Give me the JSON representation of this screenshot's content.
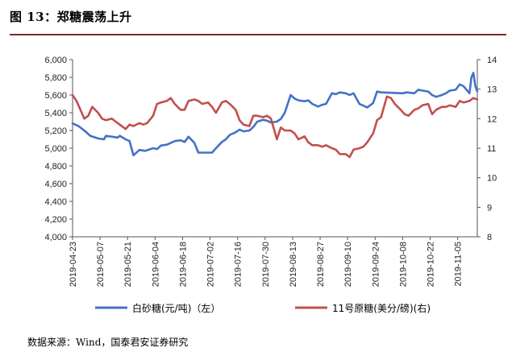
{
  "title": "图 13：郑糖震荡上升",
  "source": "数据来源：Wind，国泰君安证券研究",
  "chart_data": {
    "type": "line",
    "y_left": {
      "min": 4000,
      "max": 6000,
      "step": 200,
      "ticks": [
        "4,000",
        "4,200",
        "4,400",
        "4,600",
        "4,800",
        "5,000",
        "5,200",
        "5,400",
        "5,600",
        "5,800",
        "6,000"
      ]
    },
    "y_right": {
      "min": 8,
      "max": 14,
      "step": 1,
      "ticks": [
        "8",
        "9",
        "10",
        "11",
        "12",
        "13",
        "14"
      ]
    },
    "x_ticks": [
      "2019-04-23",
      "2019-05-07",
      "2019-05-21",
      "2019-06-04",
      "2019-06-18",
      "2019-07-02",
      "2019-07-16",
      "2019-07-30",
      "2019-08-13",
      "2019-08-27",
      "2019-09-10",
      "2019-09-24",
      "2019-10-08",
      "2019-10-22",
      "2019-11-05"
    ],
    "x_range": [
      "2019-04-23",
      "2019-11-15"
    ],
    "grid": false,
    "legend_position": "bottom",
    "series": [
      {
        "name": "白砂糖(元/吨)（左）",
        "axis": "left",
        "color": "#4472c4",
        "points": [
          [
            "2019-04-23",
            5280
          ],
          [
            "2019-04-26",
            5250
          ],
          [
            "2019-04-29",
            5200
          ],
          [
            "2019-05-02",
            5140
          ],
          [
            "2019-05-06",
            5110
          ],
          [
            "2019-05-09",
            5100
          ],
          [
            "2019-05-10",
            5140
          ],
          [
            "2019-05-13",
            5130
          ],
          [
            "2019-05-16",
            5120
          ],
          [
            "2019-05-17",
            5140
          ],
          [
            "2019-05-20",
            5100
          ],
          [
            "2019-05-22",
            5080
          ],
          [
            "2019-05-24",
            4920
          ],
          [
            "2019-05-27",
            4980
          ],
          [
            "2019-05-30",
            4970
          ],
          [
            "2019-06-03",
            5000
          ],
          [
            "2019-06-05",
            4990
          ],
          [
            "2019-06-07",
            5030
          ],
          [
            "2019-06-10",
            5040
          ],
          [
            "2019-06-12",
            5060
          ],
          [
            "2019-06-14",
            5080
          ],
          [
            "2019-06-17",
            5090
          ],
          [
            "2019-06-19",
            5070
          ],
          [
            "2019-06-21",
            5130
          ],
          [
            "2019-06-24",
            5060
          ],
          [
            "2019-06-26",
            4950
          ],
          [
            "2019-06-28",
            4950
          ],
          [
            "2019-07-01",
            4950
          ],
          [
            "2019-07-03",
            4950
          ],
          [
            "2019-07-05",
            5000
          ],
          [
            "2019-07-08",
            5070
          ],
          [
            "2019-07-10",
            5100
          ],
          [
            "2019-07-12",
            5150
          ],
          [
            "2019-07-15",
            5180
          ],
          [
            "2019-07-17",
            5210
          ],
          [
            "2019-07-19",
            5190
          ],
          [
            "2019-07-22",
            5200
          ],
          [
            "2019-07-24",
            5240
          ],
          [
            "2019-07-26",
            5300
          ],
          [
            "2019-07-29",
            5320
          ],
          [
            "2019-07-31",
            5310
          ],
          [
            "2019-08-02",
            5290
          ],
          [
            "2019-08-05",
            5300
          ],
          [
            "2019-08-07",
            5330
          ],
          [
            "2019-08-09",
            5400
          ],
          [
            "2019-08-12",
            5600
          ],
          [
            "2019-08-14",
            5560
          ],
          [
            "2019-08-16",
            5540
          ],
          [
            "2019-08-19",
            5530
          ],
          [
            "2019-08-21",
            5540
          ],
          [
            "2019-08-23",
            5500
          ],
          [
            "2019-08-26",
            5470
          ],
          [
            "2019-08-28",
            5490
          ],
          [
            "2019-08-30",
            5500
          ],
          [
            "2019-09-02",
            5620
          ],
          [
            "2019-09-04",
            5610
          ],
          [
            "2019-09-06",
            5630
          ],
          [
            "2019-09-09",
            5620
          ],
          [
            "2019-09-11",
            5600
          ],
          [
            "2019-09-13",
            5620
          ],
          [
            "2019-09-16",
            5500
          ],
          [
            "2019-09-18",
            5480
          ],
          [
            "2019-09-20",
            5460
          ],
          [
            "2019-09-23",
            5510
          ],
          [
            "2019-09-25",
            5640
          ],
          [
            "2019-09-27",
            5630
          ],
          [
            "2019-10-08",
            5620
          ],
          [
            "2019-10-10",
            5630
          ],
          [
            "2019-10-14",
            5620
          ],
          [
            "2019-10-16",
            5660
          ],
          [
            "2019-10-18",
            5650
          ],
          [
            "2019-10-21",
            5640
          ],
          [
            "2019-10-23",
            5600
          ],
          [
            "2019-10-25",
            5580
          ],
          [
            "2019-10-28",
            5600
          ],
          [
            "2019-10-30",
            5620
          ],
          [
            "2019-11-01",
            5650
          ],
          [
            "2019-11-04",
            5660
          ],
          [
            "2019-11-06",
            5720
          ],
          [
            "2019-11-08",
            5700
          ],
          [
            "2019-11-11",
            5620
          ],
          [
            "2019-11-12",
            5800
          ],
          [
            "2019-11-13",
            5850
          ],
          [
            "2019-11-14",
            5700
          ],
          [
            "2019-11-15",
            5640
          ]
        ]
      },
      {
        "name": "11号原糖(美分/磅)(右)",
        "axis": "right",
        "color": "#c0504d",
        "points": [
          [
            "2019-04-23",
            12.8
          ],
          [
            "2019-04-25",
            12.6
          ],
          [
            "2019-04-29",
            12.0
          ],
          [
            "2019-05-01",
            12.1
          ],
          [
            "2019-05-03",
            12.4
          ],
          [
            "2019-05-06",
            12.2
          ],
          [
            "2019-05-08",
            12.0
          ],
          [
            "2019-05-10",
            11.95
          ],
          [
            "2019-05-13",
            12.0
          ],
          [
            "2019-05-15",
            11.9
          ],
          [
            "2019-05-17",
            11.8
          ],
          [
            "2019-05-20",
            11.65
          ],
          [
            "2019-05-22",
            11.8
          ],
          [
            "2019-05-24",
            11.75
          ],
          [
            "2019-05-27",
            11.85
          ],
          [
            "2019-05-29",
            11.8
          ],
          [
            "2019-05-31",
            11.85
          ],
          [
            "2019-06-03",
            12.1
          ],
          [
            "2019-06-05",
            12.5
          ],
          [
            "2019-06-07",
            12.55
          ],
          [
            "2019-06-10",
            12.6
          ],
          [
            "2019-06-12",
            12.7
          ],
          [
            "2019-06-14",
            12.5
          ],
          [
            "2019-06-17",
            12.3
          ],
          [
            "2019-06-19",
            12.3
          ],
          [
            "2019-06-21",
            12.6
          ],
          [
            "2019-06-24",
            12.65
          ],
          [
            "2019-06-26",
            12.6
          ],
          [
            "2019-06-28",
            12.5
          ],
          [
            "2019-07-01",
            12.55
          ],
          [
            "2019-07-03",
            12.4
          ],
          [
            "2019-07-05",
            12.2
          ],
          [
            "2019-07-08",
            12.55
          ],
          [
            "2019-07-10",
            12.6
          ],
          [
            "2019-07-12",
            12.5
          ],
          [
            "2019-07-15",
            12.3
          ],
          [
            "2019-07-17",
            11.95
          ],
          [
            "2019-07-19",
            11.8
          ],
          [
            "2019-07-22",
            11.75
          ],
          [
            "2019-07-24",
            12.1
          ],
          [
            "2019-07-26",
            12.1
          ],
          [
            "2019-07-29",
            12.05
          ],
          [
            "2019-07-31",
            12.1
          ],
          [
            "2019-08-02",
            12.0
          ],
          [
            "2019-08-05",
            11.3
          ],
          [
            "2019-08-07",
            11.7
          ],
          [
            "2019-08-09",
            11.6
          ],
          [
            "2019-08-12",
            11.6
          ],
          [
            "2019-08-14",
            11.5
          ],
          [
            "2019-08-16",
            11.3
          ],
          [
            "2019-08-19",
            11.4
          ],
          [
            "2019-08-21",
            11.2
          ],
          [
            "2019-08-23",
            11.1
          ],
          [
            "2019-08-26",
            11.1
          ],
          [
            "2019-08-28",
            11.05
          ],
          [
            "2019-08-30",
            11.1
          ],
          [
            "2019-09-02",
            11.0
          ],
          [
            "2019-09-04",
            10.95
          ],
          [
            "2019-09-06",
            10.8
          ],
          [
            "2019-09-09",
            10.8
          ],
          [
            "2019-09-11",
            10.7
          ],
          [
            "2019-09-13",
            10.95
          ],
          [
            "2019-09-16",
            11.0
          ],
          [
            "2019-09-18",
            11.05
          ],
          [
            "2019-09-20",
            11.2
          ],
          [
            "2019-09-23",
            11.5
          ],
          [
            "2019-09-25",
            11.95
          ],
          [
            "2019-09-27",
            12.05
          ],
          [
            "2019-09-30",
            12.75
          ],
          [
            "2019-10-02",
            12.7
          ],
          [
            "2019-10-04",
            12.5
          ],
          [
            "2019-10-07",
            12.3
          ],
          [
            "2019-10-09",
            12.15
          ],
          [
            "2019-10-11",
            12.1
          ],
          [
            "2019-10-14",
            12.3
          ],
          [
            "2019-10-16",
            12.35
          ],
          [
            "2019-10-18",
            12.45
          ],
          [
            "2019-10-21",
            12.5
          ],
          [
            "2019-10-23",
            12.15
          ],
          [
            "2019-10-25",
            12.3
          ],
          [
            "2019-10-28",
            12.4
          ],
          [
            "2019-10-30",
            12.4
          ],
          [
            "2019-11-01",
            12.45
          ],
          [
            "2019-11-04",
            12.4
          ],
          [
            "2019-11-06",
            12.6
          ],
          [
            "2019-11-08",
            12.55
          ],
          [
            "2019-11-11",
            12.6
          ],
          [
            "2019-11-13",
            12.7
          ],
          [
            "2019-11-15",
            12.65
          ]
        ]
      }
    ]
  }
}
